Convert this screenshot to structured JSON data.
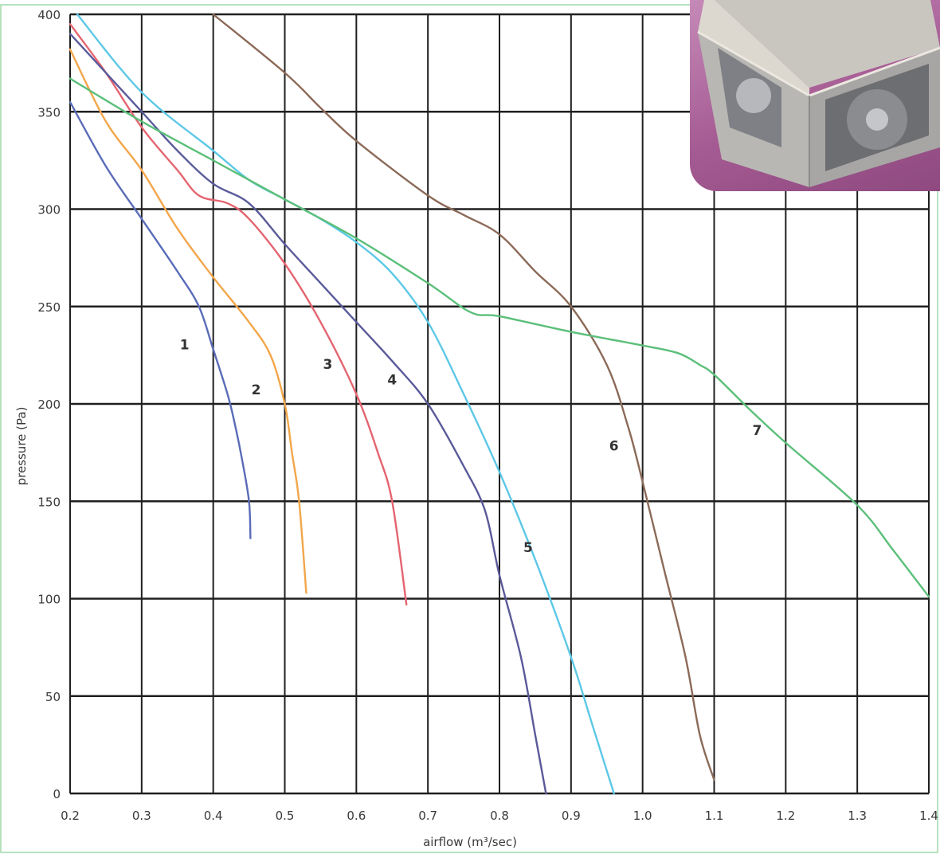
{
  "chart_data": {
    "type": "line",
    "title": "",
    "xlabel": "airflow (m³/sec)",
    "ylabel": "pressure (Pa)",
    "xlim": [
      0.2,
      1.4
    ],
    "ylim": [
      0,
      400
    ],
    "x_ticks": [
      "0.2",
      "0.3",
      "0.4",
      "0.5",
      "0.6",
      "0.7",
      "0.8",
      "0.9",
      "1.0",
      "1.1",
      "1.2",
      "1.3",
      "1.4"
    ],
    "y_ticks": [
      "0",
      "50",
      "100",
      "150",
      "200",
      "250",
      "300",
      "350",
      "400"
    ],
    "grid": true,
    "legend": "none",
    "series": [
      {
        "name": "1",
        "color": "#5a6cb8",
        "label_at": [
          0.36,
          228
        ],
        "points": [
          [
            0.2,
            355
          ],
          [
            0.25,
            322
          ],
          [
            0.3,
            295
          ],
          [
            0.35,
            268
          ],
          [
            0.38,
            250
          ],
          [
            0.4,
            228
          ],
          [
            0.42,
            205
          ],
          [
            0.43,
            190
          ],
          [
            0.44,
            172
          ],
          [
            0.45,
            150
          ],
          [
            0.452,
            131
          ]
        ]
      },
      {
        "name": "2",
        "color": "#f2a64a",
        "label_at": [
          0.46,
          205
        ],
        "points": [
          [
            0.2,
            382
          ],
          [
            0.25,
            345
          ],
          [
            0.3,
            320
          ],
          [
            0.35,
            290
          ],
          [
            0.4,
            265
          ],
          [
            0.45,
            242
          ],
          [
            0.48,
            225
          ],
          [
            0.5,
            200
          ],
          [
            0.51,
            175
          ],
          [
            0.52,
            150
          ],
          [
            0.53,
            103
          ]
        ]
      },
      {
        "name": "3",
        "color": "#e46470",
        "label_at": [
          0.56,
          218
        ],
        "points": [
          [
            0.2,
            395
          ],
          [
            0.25,
            370
          ],
          [
            0.3,
            342
          ],
          [
            0.35,
            320
          ],
          [
            0.38,
            307
          ],
          [
            0.42,
            303
          ],
          [
            0.45,
            295
          ],
          [
            0.5,
            272
          ],
          [
            0.55,
            242
          ],
          [
            0.6,
            205
          ],
          [
            0.63,
            175
          ],
          [
            0.65,
            150
          ],
          [
            0.67,
            97
          ]
        ]
      },
      {
        "name": "4",
        "color": "#5a5a9a",
        "label_at": [
          0.65,
          210
        ],
        "points": [
          [
            0.2,
            390
          ],
          [
            0.3,
            350
          ],
          [
            0.35,
            330
          ],
          [
            0.4,
            313
          ],
          [
            0.45,
            303
          ],
          [
            0.5,
            282
          ],
          [
            0.55,
            262
          ],
          [
            0.6,
            242
          ],
          [
            0.65,
            222
          ],
          [
            0.7,
            200
          ],
          [
            0.75,
            168
          ],
          [
            0.78,
            145
          ],
          [
            0.8,
            112
          ],
          [
            0.83,
            70
          ],
          [
            0.85,
            30
          ],
          [
            0.865,
            0
          ]
        ]
      },
      {
        "name": "5",
        "color": "#5cc8e6",
        "label_at": [
          0.84,
          124
        ],
        "points": [
          [
            0.21,
            400
          ],
          [
            0.3,
            360
          ],
          [
            0.4,
            330
          ],
          [
            0.45,
            315
          ],
          [
            0.5,
            305
          ],
          [
            0.55,
            295
          ],
          [
            0.6,
            283
          ],
          [
            0.65,
            267
          ],
          [
            0.7,
            242
          ],
          [
            0.75,
            205
          ],
          [
            0.8,
            165
          ],
          [
            0.85,
            120
          ],
          [
            0.9,
            70
          ],
          [
            0.93,
            35
          ],
          [
            0.96,
            0
          ]
        ]
      },
      {
        "name": "6",
        "color": "#8c6a58",
        "label_at": [
          0.96,
          176
        ],
        "points": [
          [
            0.4,
            400
          ],
          [
            0.5,
            370
          ],
          [
            0.55,
            352
          ],
          [
            0.6,
            335
          ],
          [
            0.7,
            307
          ],
          [
            0.75,
            297
          ],
          [
            0.8,
            287
          ],
          [
            0.85,
            268
          ],
          [
            0.9,
            250
          ],
          [
            0.95,
            220
          ],
          [
            0.98,
            188
          ],
          [
            1.0,
            160
          ],
          [
            1.03,
            115
          ],
          [
            1.06,
            70
          ],
          [
            1.08,
            30
          ],
          [
            1.1,
            7
          ]
        ]
      },
      {
        "name": "7",
        "color": "#5cbf7a",
        "label_at": [
          1.16,
          184
        ],
        "points": [
          [
            0.2,
            367
          ],
          [
            0.3,
            345
          ],
          [
            0.4,
            325
          ],
          [
            0.5,
            305
          ],
          [
            0.6,
            285
          ],
          [
            0.7,
            262
          ],
          [
            0.76,
            247
          ],
          [
            0.8,
            245
          ],
          [
            0.9,
            237
          ],
          [
            1.0,
            230
          ],
          [
            1.05,
            226
          ],
          [
            1.08,
            220
          ],
          [
            1.1,
            215
          ],
          [
            1.15,
            197
          ],
          [
            1.2,
            180
          ],
          [
            1.3,
            148
          ],
          [
            1.35,
            125
          ],
          [
            1.4,
            101
          ]
        ]
      }
    ]
  },
  "product_photo": {
    "icon": "ventilation-fan-box-icon"
  },
  "colors": {
    "grid": "#1f1f1f",
    "frame": "#9fd8a8",
    "photo_bg": "#b06aa0"
  }
}
